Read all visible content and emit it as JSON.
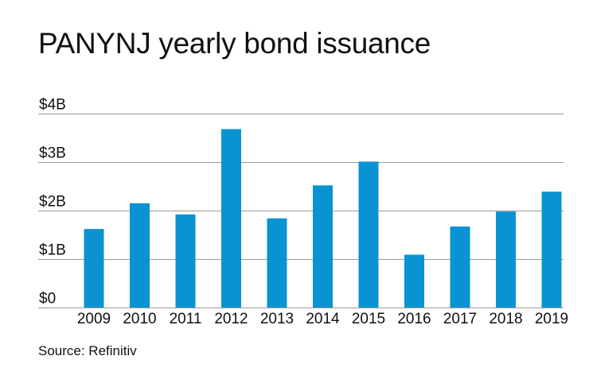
{
  "title": "PANYNJ yearly bond issuance",
  "source": "Source: Refinitiv",
  "colors": {
    "bar": "#0a93d2",
    "gridline": "#9a9a9a",
    "text": "#111111"
  },
  "chart_data": {
    "type": "bar",
    "title": "PANYNJ yearly bond issuance",
    "xlabel": "",
    "ylabel": "",
    "categories": [
      "2009",
      "2010",
      "2011",
      "2012",
      "2013",
      "2014",
      "2015",
      "2016",
      "2017",
      "2018",
      "2019"
    ],
    "values": [
      1.62,
      2.15,
      1.92,
      3.68,
      1.84,
      2.52,
      3.01,
      1.09,
      1.67,
      1.98,
      2.39
    ],
    "unit": "billion USD",
    "ylim": [
      0,
      4
    ],
    "yticks": [
      0,
      1,
      2,
      3,
      4
    ],
    "ytick_labels": [
      "$0",
      "$1B",
      "$2B",
      "$3B",
      "$4B"
    ],
    "grid": true,
    "legend": "none"
  }
}
